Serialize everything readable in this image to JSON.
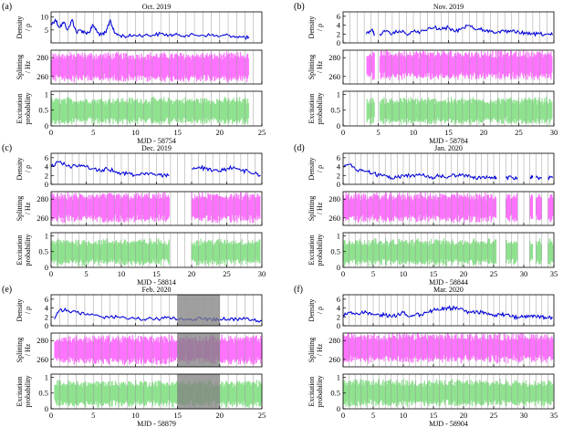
{
  "colors": {
    "density": "#0000dd",
    "splitting": "#ff00ff",
    "excitation": "#33cc33"
  },
  "chart_data": [
    {
      "label": "(a)",
      "title": "Oct. 2019",
      "xlabel": "MJD - 58754",
      "xlim": [
        0,
        25
      ],
      "xticks": [
        0,
        5,
        10,
        15,
        20,
        25
      ],
      "data_end": 23.5,
      "gaps": [],
      "density": {
        "ylabel": [
          "Density",
          "/ ρ"
        ],
        "ylim": [
          0,
          12
        ],
        "yticks": [
          5,
          10
        ],
        "series": [
          [
            0,
            7
          ],
          [
            0.5,
            9
          ],
          [
            1,
            6
          ],
          [
            1.5,
            8
          ],
          [
            2,
            5
          ],
          [
            2.5,
            9
          ],
          [
            3,
            4
          ],
          [
            3.5,
            5
          ],
          [
            4,
            4
          ],
          [
            4.5,
            4
          ],
          [
            5,
            7
          ],
          [
            5.5,
            4
          ],
          [
            6,
            3
          ],
          [
            6.5,
            4
          ],
          [
            7,
            9
          ],
          [
            7.5,
            4
          ],
          [
            8,
            3
          ],
          [
            9,
            2.5
          ],
          [
            10,
            3
          ],
          [
            11,
            3
          ],
          [
            12,
            3
          ],
          [
            13,
            3.5
          ],
          [
            14,
            3
          ],
          [
            15,
            3
          ],
          [
            16,
            3
          ],
          [
            17,
            3
          ],
          [
            18,
            3
          ],
          [
            19,
            3
          ],
          [
            20,
            2.5
          ],
          [
            21,
            3
          ],
          [
            22,
            2.5
          ],
          [
            23,
            2
          ],
          [
            23.5,
            2
          ]
        ]
      },
      "splitting": {
        "ylabel": [
          "Splitting",
          "/ Hz"
        ],
        "ylim": [
          252,
          288
        ],
        "yticks": [
          260,
          280
        ],
        "center": 270,
        "spread": 14
      },
      "excitation": {
        "ylabel": [
          "Excitation",
          "probability"
        ],
        "ylim": [
          0,
          1.1
        ],
        "yticks": [
          0,
          0.5,
          1
        ],
        "center": 0.48,
        "spread": 0.38
      }
    },
    {
      "label": "(b)",
      "title": "Nov. 2019",
      "xlabel": "MJD - 58784",
      "xlim": [
        0,
        30
      ],
      "xticks": [
        0,
        5,
        10,
        15,
        20,
        25,
        30
      ],
      "data_end": 29.8,
      "gaps": [
        [
          0,
          3.3
        ],
        [
          4.5,
          5.2
        ]
      ],
      "density": {
        "ylabel": [
          "Density",
          "/ ρ"
        ],
        "ylim": [
          0,
          7
        ],
        "yticks": [
          0,
          2,
          4,
          6
        ],
        "series": [
          [
            3.3,
            2
          ],
          [
            4,
            3
          ],
          [
            4.5,
            2
          ],
          [
            5.2,
            2
          ],
          [
            6,
            2.5
          ],
          [
            7,
            2
          ],
          [
            8,
            2.8
          ],
          [
            9,
            2
          ],
          [
            10,
            2.5
          ],
          [
            11,
            2.5
          ],
          [
            12,
            3
          ],
          [
            13,
            3.5
          ],
          [
            14,
            3
          ],
          [
            15,
            3.5
          ],
          [
            16,
            2.5
          ],
          [
            17,
            3.5
          ],
          [
            18,
            4
          ],
          [
            19,
            3
          ],
          [
            20,
            3
          ],
          [
            21,
            2.5
          ],
          [
            22,
            2.5
          ],
          [
            23,
            2.5
          ],
          [
            24,
            2.5
          ],
          [
            25,
            2.5
          ],
          [
            26,
            2
          ],
          [
            27,
            2
          ],
          [
            28,
            2
          ],
          [
            29,
            2
          ],
          [
            29.8,
            1.8
          ]
        ]
      },
      "splitting": {
        "ylabel": [
          "Splitting",
          "/ Hz"
        ],
        "ylim": [
          252,
          288
        ],
        "yticks": [
          260,
          280
        ],
        "center": 272,
        "spread": 14
      },
      "excitation": {
        "ylabel": [
          "Excitation",
          "probability"
        ],
        "ylim": [
          0,
          1.1
        ],
        "yticks": [
          0,
          0.5,
          1
        ],
        "center": 0.48,
        "spread": 0.38
      }
    },
    {
      "label": "(c)",
      "title": "Dec. 2019",
      "xlabel": "MJD - 58814",
      "xlim": [
        0,
        30
      ],
      "xticks": [
        0,
        5,
        10,
        15,
        20,
        25,
        30
      ],
      "data_end": 29.8,
      "gaps": [
        [
          16.8,
          20
        ]
      ],
      "density": {
        "ylabel": [
          "Density",
          "/ ρ"
        ],
        "ylim": [
          0,
          7
        ],
        "yticks": [
          0,
          2,
          4,
          6
        ],
        "series": [
          [
            0,
            4
          ],
          [
            1,
            5
          ],
          [
            2,
            4.5
          ],
          [
            3,
            4
          ],
          [
            4,
            4.5
          ],
          [
            5,
            4
          ],
          [
            6,
            3.5
          ],
          [
            7,
            3
          ],
          [
            8,
            3.5
          ],
          [
            9,
            3
          ],
          [
            10,
            2.5
          ],
          [
            11,
            2.5
          ],
          [
            12,
            2
          ],
          [
            13,
            2.5
          ],
          [
            14,
            2.5
          ],
          [
            15,
            2
          ],
          [
            16,
            2
          ],
          [
            16.8,
            2
          ],
          [
            20,
            3.5
          ],
          [
            21,
            4
          ],
          [
            22,
            3.5
          ],
          [
            23,
            3
          ],
          [
            24,
            3
          ],
          [
            25,
            3.5
          ],
          [
            26,
            4
          ],
          [
            27,
            3
          ],
          [
            28,
            3
          ],
          [
            29,
            2.5
          ],
          [
            29.8,
            2
          ]
        ]
      },
      "splitting": {
        "ylabel": [
          "Splitting",
          "/ Hz"
        ],
        "ylim": [
          252,
          288
        ],
        "yticks": [
          260,
          280
        ],
        "center": 271,
        "spread": 14
      },
      "excitation": {
        "ylabel": [
          "Excitation",
          "probability"
        ],
        "ylim": [
          0,
          1.1
        ],
        "yticks": [
          0,
          0.5,
          1
        ],
        "center": 0.48,
        "spread": 0.38
      }
    },
    {
      "label": "(d)",
      "title": "Jan. 2020",
      "xlabel": "MJD - 58844",
      "xlim": [
        0,
        35
      ],
      "xticks": [
        0,
        5,
        10,
        15,
        20,
        25,
        30,
        35
      ],
      "data_end": 34.8,
      "gaps": [
        [
          25.5,
          27
        ],
        [
          29,
          31
        ],
        [
          31.5,
          32
        ],
        [
          33,
          34
        ]
      ],
      "density": {
        "ylabel": [
          "Density",
          "/ ρ"
        ],
        "ylim": [
          0,
          7
        ],
        "yticks": [
          0,
          2,
          4,
          6
        ],
        "series": [
          [
            0,
            4
          ],
          [
            1,
            4.5
          ],
          [
            2,
            3.5
          ],
          [
            3,
            3
          ],
          [
            4,
            3
          ],
          [
            5,
            2.5
          ],
          [
            6,
            2
          ],
          [
            7,
            2
          ],
          [
            8,
            1.5
          ],
          [
            9,
            1.5
          ],
          [
            10,
            2
          ],
          [
            11,
            2
          ],
          [
            12,
            2
          ],
          [
            13,
            2
          ],
          [
            14,
            2
          ],
          [
            15,
            1.5
          ],
          [
            16,
            2
          ],
          [
            17,
            1.5
          ],
          [
            18,
            2
          ],
          [
            19,
            2
          ],
          [
            20,
            2
          ],
          [
            21,
            2
          ],
          [
            22,
            1.5
          ],
          [
            23,
            1.5
          ],
          [
            24,
            1.5
          ],
          [
            25,
            1.5
          ],
          [
            25.5,
            1.5
          ],
          [
            27,
            1.5
          ],
          [
            28,
            1.5
          ],
          [
            29,
            1.5
          ],
          [
            31,
            1.5
          ],
          [
            31.5,
            1.5
          ],
          [
            32,
            1.5
          ],
          [
            33,
            1.5
          ],
          [
            34,
            1.5
          ],
          [
            34.8,
            1.5
          ]
        ]
      },
      "splitting": {
        "ylabel": [
          "Splitting",
          "/ Hz"
        ],
        "ylim": [
          252,
          288
        ],
        "yticks": [
          260,
          280
        ],
        "center": 271,
        "spread": 14
      },
      "excitation": {
        "ylabel": [
          "Excitation",
          "probability"
        ],
        "ylim": [
          0,
          1.1
        ],
        "yticks": [
          0,
          0.5,
          1
        ],
        "center": 0.48,
        "spread": 0.38
      }
    },
    {
      "label": "(e)",
      "title": "Feb. 2020",
      "xlabel": "MJD - 58879",
      "xlim": [
        0,
        25
      ],
      "xticks": [
        0,
        5,
        10,
        15,
        20,
        25
      ],
      "data_end": 25,
      "gaps": [
        [
          0,
          0.4
        ]
      ],
      "shaded": [
        15,
        20
      ],
      "density": {
        "ylabel": [
          "Density",
          "/ ρ"
        ],
        "ylim": [
          0,
          7
        ],
        "yticks": [
          0,
          2,
          4,
          6
        ],
        "series": [
          [
            0.4,
            1.5
          ],
          [
            1,
            3.5
          ],
          [
            2,
            3.5
          ],
          [
            3,
            3
          ],
          [
            4,
            2.5
          ],
          [
            5,
            2.5
          ],
          [
            6,
            2
          ],
          [
            7,
            2
          ],
          [
            8,
            2
          ],
          [
            9,
            1.5
          ],
          [
            10,
            1.5
          ],
          [
            11,
            1.5
          ],
          [
            12,
            1.5
          ],
          [
            13,
            1.5
          ],
          [
            14,
            2
          ],
          [
            15,
            1.5
          ],
          [
            16,
            1.5
          ],
          [
            17,
            1.5
          ],
          [
            18,
            1.5
          ],
          [
            19,
            1.5
          ],
          [
            20,
            1.5
          ],
          [
            21,
            1.5
          ],
          [
            22,
            1.5
          ],
          [
            23,
            1.5
          ],
          [
            24,
            1.2
          ],
          [
            25,
            1.2
          ]
        ]
      },
      "splitting": {
        "ylabel": [
          "Splitting",
          "/ Hz"
        ],
        "ylim": [
          252,
          288
        ],
        "yticks": [
          260,
          280
        ],
        "center": 270,
        "spread": 14
      },
      "excitation": {
        "ylabel": [
          "Excitation",
          "probability"
        ],
        "ylim": [
          0,
          1.1
        ],
        "yticks": [
          0,
          0.5,
          1
        ],
        "center": 0.48,
        "spread": 0.38
      }
    },
    {
      "label": "(f)",
      "title": "Mar. 2020",
      "xlabel": "MJD - 58904",
      "xlim": [
        0,
        35
      ],
      "xticks": [
        0,
        5,
        10,
        15,
        20,
        25,
        30,
        35
      ],
      "data_end": 34.8,
      "gaps": [],
      "density": {
        "ylabel": [
          "Density",
          "/ ρ"
        ],
        "ylim": [
          0,
          7
        ],
        "yticks": [
          0,
          2,
          4,
          6
        ],
        "series": [
          [
            0,
            2.5
          ],
          [
            1,
            3
          ],
          [
            2,
            2.5
          ],
          [
            3,
            3
          ],
          [
            4,
            3
          ],
          [
            5,
            2.5
          ],
          [
            6,
            2.5
          ],
          [
            7,
            2.5
          ],
          [
            8,
            2
          ],
          [
            9,
            2.5
          ],
          [
            10,
            3
          ],
          [
            11,
            2
          ],
          [
            12,
            2.5
          ],
          [
            13,
            2.5
          ],
          [
            14,
            3
          ],
          [
            15,
            3.5
          ],
          [
            16,
            3.5
          ],
          [
            17,
            4
          ],
          [
            18,
            4
          ],
          [
            19,
            4
          ],
          [
            20,
            3.5
          ],
          [
            21,
            3
          ],
          [
            22,
            3
          ],
          [
            23,
            3
          ],
          [
            24,
            2.5
          ],
          [
            25,
            2.5
          ],
          [
            26,
            2.5
          ],
          [
            27,
            2.5
          ],
          [
            28,
            2
          ],
          [
            29,
            2
          ],
          [
            30,
            2
          ],
          [
            31,
            2
          ],
          [
            32,
            2
          ],
          [
            33,
            2
          ],
          [
            34,
            1.8
          ],
          [
            34.8,
            1.8
          ]
        ]
      },
      "splitting": {
        "ylabel": [
          "Splitting",
          "/ Hz"
        ],
        "ylim": [
          252,
          288
        ],
        "yticks": [
          260,
          280
        ],
        "center": 272,
        "spread": 14
      },
      "excitation": {
        "ylabel": [
          "Excitation",
          "probability"
        ],
        "ylim": [
          0,
          1.1
        ],
        "yticks": [
          0,
          0.5,
          1
        ],
        "center": 0.5,
        "spread": 0.38
      }
    }
  ]
}
